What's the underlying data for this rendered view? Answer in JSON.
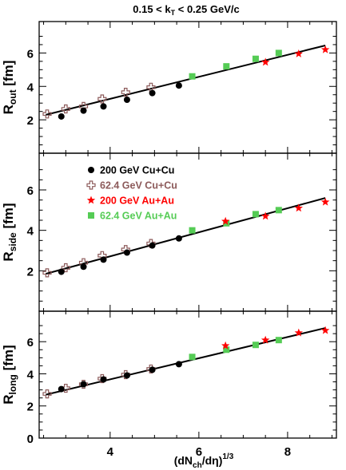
{
  "chart_data": {
    "type": "scatter",
    "title": "0.15 < k_T < 0.25 GeV/c",
    "xlabel": "(dN_ch/dη)^1/3",
    "xlim": [
      2.4,
      9.1
    ],
    "x_ticks": [
      4,
      6,
      8
    ],
    "legend": {
      "placement": "middle-left",
      "entries": [
        {
          "series": "cucu200",
          "label": "200 GeV Cu+Cu",
          "marker": "circle",
          "color": "#000000"
        },
        {
          "series": "cucu62",
          "label": "62.4 GeV Cu+Cu",
          "marker": "open-cross",
          "color": "#8c5a5a"
        },
        {
          "series": "auau200",
          "label": "200 GeV Au+Au",
          "marker": "star",
          "color": "#ff0000"
        },
        {
          "series": "auau62",
          "label": "62.4 GeV Au+Au",
          "marker": "square",
          "color": "#55cc55"
        }
      ]
    },
    "panels": [
      {
        "id": "out",
        "ylabel": "R_out [fm]",
        "ylim": [
          0,
          7.5
        ],
        "y_ticks": [
          2,
          4,
          6
        ],
        "show_x_ticklabels": false,
        "fit": {
          "x": [
            2.55,
            8.85
          ],
          "y": [
            2.3,
            6.45
          ]
        },
        "series": {
          "cucu62": [
            [
              2.58,
              2.35
            ],
            [
              3.0,
              2.65
            ],
            [
              3.4,
              2.8
            ],
            [
              3.82,
              3.25
            ],
            [
              4.35,
              3.65
            ],
            [
              4.92,
              3.95
            ]
          ],
          "cucu200": [
            [
              2.9,
              2.2
            ],
            [
              3.4,
              2.55
            ],
            [
              3.85,
              2.8
            ],
            [
              4.38,
              3.2
            ],
            [
              4.95,
              3.6
            ],
            [
              5.55,
              4.05
            ]
          ],
          "auau62": [
            [
              5.85,
              4.6
            ],
            [
              6.62,
              5.2
            ],
            [
              7.28,
              5.65
            ],
            [
              7.8,
              6.0
            ]
          ],
          "auau200": [
            [
              7.5,
              5.45
            ],
            [
              8.25,
              5.95
            ],
            [
              8.85,
              6.2
            ]
          ]
        }
      },
      {
        "id": "side",
        "ylabel": "R_side [fm]",
        "ylim": [
          0,
          7.5
        ],
        "y_ticks": [
          2,
          4,
          6
        ],
        "show_x_ticklabels": false,
        "fit": {
          "x": [
            2.55,
            8.85
          ],
          "y": [
            1.85,
            5.6
          ]
        },
        "series": {
          "cucu62": [
            [
              2.58,
              1.9
            ],
            [
              3.0,
              2.15
            ],
            [
              3.4,
              2.4
            ],
            [
              3.82,
              2.75
            ],
            [
              4.35,
              3.05
            ],
            [
              4.92,
              3.35
            ]
          ],
          "cucu200": [
            [
              2.9,
              1.95
            ],
            [
              3.4,
              2.2
            ],
            [
              3.85,
              2.55
            ],
            [
              4.38,
              2.9
            ],
            [
              4.95,
              3.25
            ],
            [
              5.55,
              3.6
            ]
          ],
          "auau62": [
            [
              5.85,
              4.0
            ],
            [
              6.62,
              4.35
            ],
            [
              7.28,
              4.8
            ],
            [
              7.8,
              5.0
            ]
          ],
          "auau200": [
            [
              6.6,
              4.45
            ],
            [
              7.5,
              4.7
            ],
            [
              8.25,
              5.1
            ],
            [
              8.85,
              5.4
            ]
          ]
        }
      },
      {
        "id": "long",
        "ylabel": "R_long [fm]",
        "ylim": [
          0,
          7.5
        ],
        "y_ticks": [
          0,
          2,
          4,
          6
        ],
        "show_x_ticklabels": true,
        "fit": {
          "x": [
            2.55,
            8.85
          ],
          "y": [
            2.7,
            6.85
          ]
        },
        "series": {
          "cucu62": [
            [
              2.58,
              2.75
            ],
            [
              3.0,
              3.1
            ],
            [
              3.4,
              3.35
            ],
            [
              3.82,
              3.7
            ],
            [
              4.35,
              3.95
            ],
            [
              4.92,
              4.3
            ]
          ],
          "cucu200": [
            [
              2.9,
              3.05
            ],
            [
              3.4,
              3.35
            ],
            [
              3.85,
              3.65
            ],
            [
              4.38,
              3.9
            ],
            [
              4.95,
              4.25
            ],
            [
              5.55,
              4.6
            ]
          ],
          "auau62": [
            [
              5.85,
              5.05
            ],
            [
              6.62,
              5.5
            ],
            [
              7.28,
              5.8
            ],
            [
              7.8,
              6.1
            ]
          ],
          "auau200": [
            [
              6.6,
              5.75
            ],
            [
              7.5,
              6.1
            ],
            [
              8.25,
              6.55
            ],
            [
              8.85,
              6.7
            ]
          ]
        }
      }
    ]
  }
}
